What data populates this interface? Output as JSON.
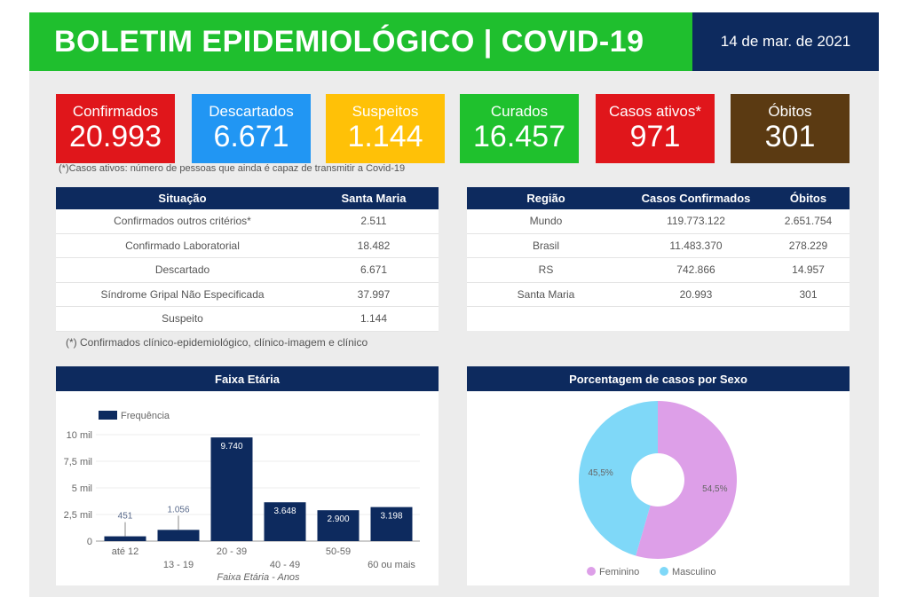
{
  "header": {
    "title": "BOLETIM EPIDEMIOLÓGICO | COVID-19",
    "date": "14 de mar. de 2021"
  },
  "cards": [
    {
      "label": "Confirmados",
      "value": "20.993",
      "color": "#e0161b"
    },
    {
      "label": "Descartados",
      "value": "6.671",
      "color": "#2196f3"
    },
    {
      "label": "Suspeitos",
      "value": "1.144",
      "color": "#ffc107"
    },
    {
      "label": "Curados",
      "value": "16.457",
      "color": "#1fc12d"
    },
    {
      "label": "Casos ativos*",
      "value": "971",
      "color": "#e0161b"
    },
    {
      "label": "Óbitos",
      "value": "301",
      "color": "#5b3a12"
    }
  ],
  "cards_note": "(*)Casos ativos: número de pessoas que ainda é capaz de transmitir a Covid-19",
  "situacao": {
    "headers": [
      "Situação",
      "Santa Maria"
    ],
    "rows": [
      [
        "Confirmados outros critérios*",
        "2.511"
      ],
      [
        "Confirmado Laboratorial",
        "18.482"
      ],
      [
        "Descartado",
        "6.671"
      ],
      [
        "Síndrome Gripal Não Especificada",
        "37.997"
      ],
      [
        "Suspeito",
        "1.144"
      ]
    ],
    "note": "(*) Confirmados clínico-epidemiológico, clínico-imagem e clínico"
  },
  "regiao": {
    "headers": [
      "Região",
      "Casos Confirmados",
      "Óbitos"
    ],
    "rows": [
      [
        "Mundo",
        "119.773.122",
        "2.651.754"
      ],
      [
        "Brasil",
        "11.483.370",
        "278.229"
      ],
      [
        "RS",
        "742.866",
        "14.957"
      ],
      [
        "Santa Maria",
        "20.993",
        "301"
      ]
    ]
  },
  "chart_data": [
    {
      "type": "bar",
      "title": "Faixa Etária",
      "xlabel": "Faixa Etária - Anos",
      "ylabel": "",
      "legend": "Frequência",
      "legend_position": "top-left",
      "color": "#0d2a5e",
      "ylim": [
        0,
        10000
      ],
      "grid": true,
      "yticks": [
        "0",
        "2,5 mil",
        "5 mil",
        "7,5 mil",
        "10 mil"
      ],
      "ytick_values": [
        0,
        2500,
        5000,
        7500,
        10000
      ],
      "categories": [
        "até 12",
        "13 - 19",
        "20 - 39",
        "40 - 49",
        "50-59",
        "60 ou mais"
      ],
      "values": [
        451,
        1056,
        9740,
        3648,
        2900,
        3198
      ],
      "labels": [
        "451",
        "1.056",
        "9.740",
        "3.648",
        "2.900",
        "3.198"
      ]
    },
    {
      "type": "pie",
      "donut": true,
      "title": "Porcentagem de casos por Sexo",
      "legend_position": "bottom",
      "series": [
        {
          "name": "Feminino",
          "value": 54.5,
          "label": "54,5%",
          "color": "#dd9fe8"
        },
        {
          "name": "Masculino",
          "value": 45.5,
          "label": "45,5%",
          "color": "#7fd8f8"
        }
      ]
    }
  ]
}
